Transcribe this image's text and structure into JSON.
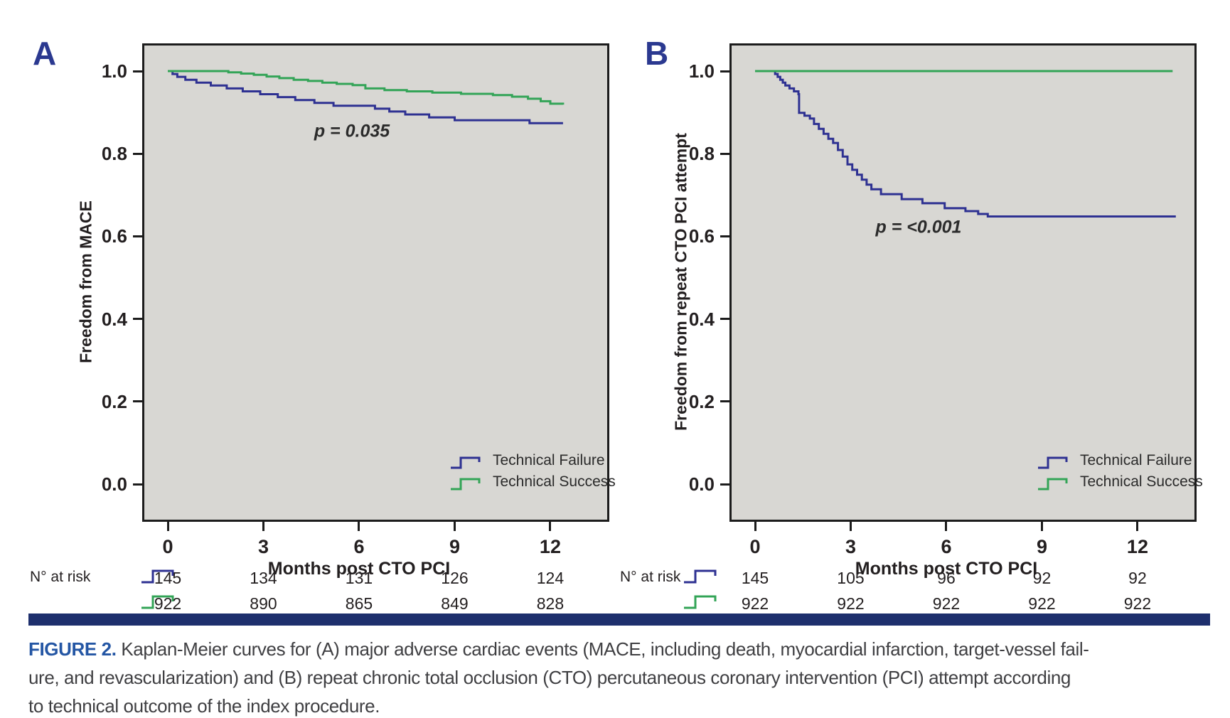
{
  "figure": {
    "caption": {
      "tag": "FIGURE 2.",
      "lines": [
        "Kaplan-Meier curves for (A) major adverse cardiac events (MACE, including death, myocardial infarction, target-vessel fail-",
        "ure, and revascularization) and (B) repeat chronic total occlusion (CTO) percutaneous coronary intervention (PCI) attempt according",
        "to technical outcome of the index procedure."
      ]
    },
    "colors": {
      "failure_line": "#2e3192",
      "success_line": "#33a457",
      "plot_background": "#d8d7d3",
      "plot_border": "#1c1c1c",
      "panel_letter": "#2b3990",
      "divider_bar": "#1e2f6d",
      "caption_tag": "#2456a4"
    }
  },
  "chart_data": [
    {
      "type": "line",
      "panel_label": "A",
      "ylabel": "Freedom from MACE",
      "xlabel": "Months post CTO PCI",
      "p_value": "p = 0.035",
      "x_ticks": [
        "0",
        "3",
        "6",
        "9",
        "12"
      ],
      "y_ticks": [
        "1.0",
        "0.8",
        "0.6",
        "0.4",
        "0.2",
        "0.0"
      ],
      "xlim": [
        0,
        12
      ],
      "ylim": [
        0.0,
        1.0
      ],
      "grid": false,
      "legend_position": "lower right",
      "series": [
        {
          "name": "Technical Failure",
          "color": "#2e3192",
          "points": [
            [
              0,
              1.0
            ],
            [
              0.15,
              0.993
            ],
            [
              0.3,
              0.986
            ],
            [
              0.55,
              0.979
            ],
            [
              0.9,
              0.972
            ],
            [
              1.35,
              0.965
            ],
            [
              1.85,
              0.958
            ],
            [
              2.35,
              0.951
            ],
            [
              2.9,
              0.944
            ],
            [
              3.45,
              0.937
            ],
            [
              4.0,
              0.93
            ],
            [
              4.6,
              0.923
            ],
            [
              5.2,
              0.916
            ],
            [
              6.5,
              0.909
            ],
            [
              6.95,
              0.902
            ],
            [
              7.45,
              0.895
            ],
            [
              8.2,
              0.888
            ],
            [
              9.0,
              0.881
            ],
            [
              11.35,
              0.874
            ],
            [
              12.4,
              0.874
            ]
          ]
        },
        {
          "name": "Technical Success",
          "color": "#33a457",
          "points": [
            [
              0,
              1.0
            ],
            [
              1.6,
              1.0
            ],
            [
              1.9,
              0.997
            ],
            [
              2.3,
              0.994
            ],
            [
              2.7,
              0.991
            ],
            [
              3.1,
              0.987
            ],
            [
              3.5,
              0.983
            ],
            [
              3.95,
              0.979
            ],
            [
              4.4,
              0.976
            ],
            [
              4.85,
              0.972
            ],
            [
              5.3,
              0.969
            ],
            [
              5.8,
              0.966
            ],
            [
              6.2,
              0.958
            ],
            [
              6.8,
              0.954
            ],
            [
              7.5,
              0.951
            ],
            [
              8.3,
              0.948
            ],
            [
              9.2,
              0.945
            ],
            [
              10.2,
              0.942
            ],
            [
              10.8,
              0.938
            ],
            [
              11.3,
              0.933
            ],
            [
              11.7,
              0.927
            ],
            [
              12.0,
              0.921
            ],
            [
              12.4,
              0.919
            ]
          ]
        }
      ],
      "risk_table": {
        "label": "N° at risk",
        "x_values": [
          0,
          3,
          6,
          9,
          12
        ],
        "rows": [
          {
            "series": "Technical Failure",
            "counts": [
              "145",
              "134",
              "131",
              "126",
              "124"
            ]
          },
          {
            "series": "Technical Success",
            "counts": [
              "922",
              "890",
              "865",
              "849",
              "828"
            ]
          }
        ]
      }
    },
    {
      "type": "line",
      "panel_label": "B",
      "ylabel": "Freedom from repeat CTO PCI attempt",
      "xlabel": "Months post CTO PCI",
      "p_value": "p = <0.001",
      "x_ticks": [
        "0",
        "3",
        "6",
        "9",
        "12"
      ],
      "y_ticks": [
        "1.0",
        "0.8",
        "0.6",
        "0.4",
        "0.2",
        "0.0"
      ],
      "xlim": [
        0,
        12
      ],
      "ylim": [
        0.0,
        1.0
      ],
      "grid": false,
      "legend_position": "lower right",
      "series": [
        {
          "name": "Technical Failure",
          "color": "#2e3192",
          "points": [
            [
              0,
              1.0
            ],
            [
              0.55,
              1.0
            ],
            [
              0.63,
              0.993
            ],
            [
              0.71,
              0.986
            ],
            [
              0.79,
              0.979
            ],
            [
              0.87,
              0.972
            ],
            [
              0.95,
              0.965
            ],
            [
              1.08,
              0.958
            ],
            [
              1.22,
              0.951
            ],
            [
              1.36,
              0.944
            ],
            [
              1.38,
              0.899
            ],
            [
              1.55,
              0.892
            ],
            [
              1.72,
              0.885
            ],
            [
              1.85,
              0.872
            ],
            [
              2.0,
              0.86
            ],
            [
              2.15,
              0.848
            ],
            [
              2.3,
              0.836
            ],
            [
              2.45,
              0.826
            ],
            [
              2.6,
              0.809
            ],
            [
              2.75,
              0.793
            ],
            [
              2.9,
              0.774
            ],
            [
              3.05,
              0.761
            ],
            [
              3.2,
              0.749
            ],
            [
              3.35,
              0.737
            ],
            [
              3.5,
              0.725
            ],
            [
              3.65,
              0.714
            ],
            [
              3.95,
              0.702
            ],
            [
              4.6,
              0.69
            ],
            [
              5.25,
              0.68
            ],
            [
              5.95,
              0.668
            ],
            [
              6.6,
              0.661
            ],
            [
              7.0,
              0.654
            ],
            [
              7.3,
              0.648
            ],
            [
              13.2,
              0.648
            ]
          ]
        },
        {
          "name": "Technical Success",
          "color": "#33a457",
          "points": [
            [
              0,
              1.0
            ],
            [
              13.1,
              1.0
            ]
          ]
        }
      ],
      "risk_table": {
        "label": "N° at risk",
        "x_values": [
          0,
          3,
          6,
          9,
          12
        ],
        "rows": [
          {
            "series": "Technical Failure",
            "counts": [
              "145",
              "105",
              "96",
              "92",
              "92"
            ]
          },
          {
            "series": "Technical Success",
            "counts": [
              "922",
              "922",
              "922",
              "922",
              "922"
            ]
          }
        ]
      }
    }
  ]
}
